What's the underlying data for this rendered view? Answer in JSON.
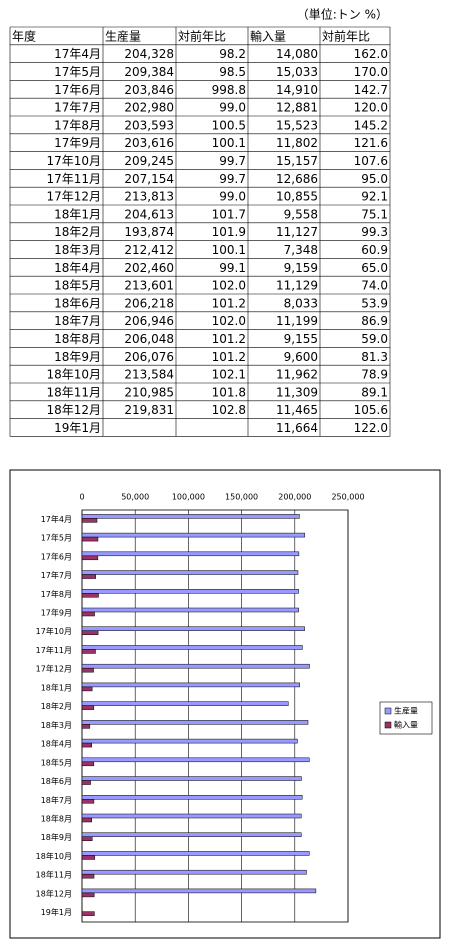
{
  "unit_note": "（単位:トン %）",
  "table": {
    "header": [
      "年度",
      "生産量",
      "対前年比",
      "輸入量",
      "対前年比"
    ],
    "rows": [
      [
        "17年4月",
        "204,328",
        "98.2",
        "14,080",
        "162.0"
      ],
      [
        "17年5月",
        "209,384",
        "98.5",
        "15,033",
        "170.0"
      ],
      [
        "17年6月",
        "203,846",
        "998.8",
        "14,910",
        "142.7"
      ],
      [
        "17年7月",
        "202,980",
        "99.0",
        "12,881",
        "120.0"
      ],
      [
        "17年8月",
        "203,593",
        "100.5",
        "15,523",
        "145.2"
      ],
      [
        "17年9月",
        "203,616",
        "100.1",
        "11,802",
        "121.6"
      ],
      [
        "17年10月",
        "209,245",
        "99.7",
        "15,157",
        "107.6"
      ],
      [
        "17年11月",
        "207,154",
        "99.7",
        "12,686",
        "95.0"
      ],
      [
        "17年12月",
        "213,813",
        "99.0",
        "10,855",
        "92.1"
      ],
      [
        "18年1月",
        "204,613",
        "101.7",
        "9,558",
        "75.1"
      ],
      [
        "18年2月",
        "193,874",
        "101.9",
        "11,127",
        "99.3"
      ],
      [
        "18年3月",
        "212,412",
        "100.1",
        "7,348",
        "60.9"
      ],
      [
        "18年4月",
        "202,460",
        "99.1",
        "9,159",
        "65.0"
      ],
      [
        "18年5月",
        "213,601",
        "102.0",
        "11,129",
        "74.0"
      ],
      [
        "18年6月",
        "206,218",
        "101.2",
        "8,033",
        "53.9"
      ],
      [
        "18年7月",
        "206,946",
        "102.0",
        "11,199",
        "86.9"
      ],
      [
        "18年8月",
        "206,048",
        "101.2",
        "9,155",
        "59.0"
      ],
      [
        "18年9月",
        "206,076",
        "101.2",
        "9,600",
        "81.3"
      ],
      [
        "18年10月",
        "213,584",
        "102.1",
        "11,962",
        "78.9"
      ],
      [
        "18年11月",
        "210,985",
        "101.8",
        "11,309",
        "89.1"
      ],
      [
        "18年12月",
        "219,831",
        "102.8",
        "11,465",
        "105.6"
      ],
      [
        "19年1月",
        null,
        null,
        "11,664",
        "122.0"
      ]
    ]
  },
  "chart_data": {
    "type": "hbar",
    "categories": [
      "17年4月",
      "17年5月",
      "17年6月",
      "17年7月",
      "17年8月",
      "17年9月",
      "17年10月",
      "17年11月",
      "17年12月",
      "18年1月",
      "18年2月",
      "18年3月",
      "18年4月",
      "18年5月",
      "18年6月",
      "18年7月",
      "18年8月",
      "18年9月",
      "18年10月",
      "18年11月",
      "18年12月",
      "19年1月"
    ],
    "series": [
      {
        "name": "生産量",
        "color": "#9999ff",
        "values": [
          204328,
          209384,
          203846,
          202980,
          203593,
          203616,
          209245,
          207154,
          213813,
          204613,
          193874,
          212412,
          202460,
          213601,
          206218,
          206946,
          206048,
          206076,
          213584,
          210985,
          219831,
          null
        ]
      },
      {
        "name": "輸入量",
        "color": "#993366",
        "values": [
          14080,
          15033,
          14910,
          12881,
          15523,
          11802,
          15157,
          12686,
          10855,
          9558,
          11127,
          7348,
          9159,
          11129,
          8033,
          11199,
          9155,
          9600,
          11962,
          11309,
          11465,
          11664
        ]
      }
    ],
    "xlim": [
      0,
      250000
    ],
    "xticks": [
      0,
      {
        "value": 50000,
        "label": "50,000"
      },
      {
        "value": 100000,
        "label": "100,000"
      },
      {
        "value": 150000,
        "label": "150,000"
      },
      {
        "value": 200000,
        "label": "200,000"
      },
      {
        "value": 250000,
        "label": "250,000"
      }
    ],
    "grid": true,
    "legend": "right"
  }
}
